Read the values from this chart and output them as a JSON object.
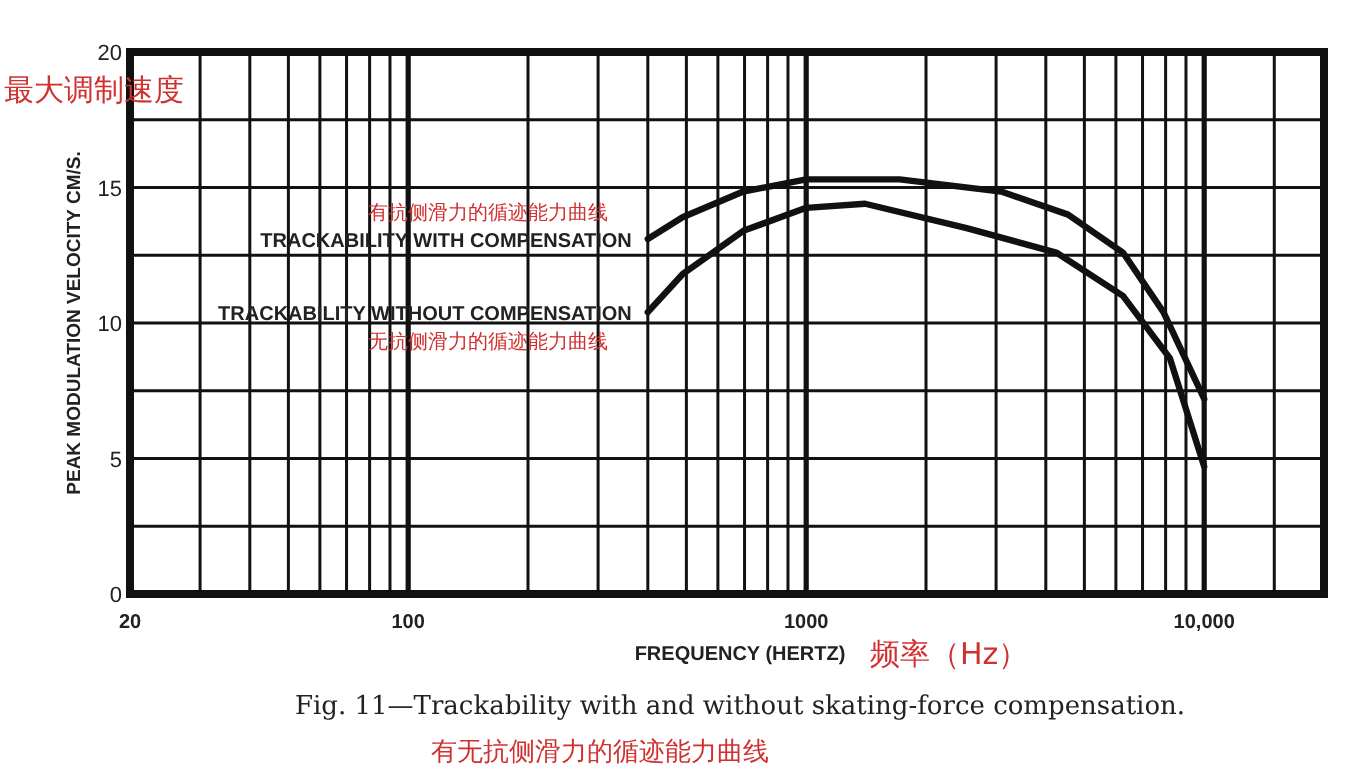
{
  "chart_data": {
    "type": "line",
    "title": "Fig. 11—Trackability with and without skating-force compensation.",
    "subtitle": "有无抗侧滑力的循迹能力曲线",
    "xlabel": "FREQUENCY (HERTZ)",
    "ylabel": "PEAK MODULATION VELOCITY CM/S.",
    "log": "x",
    "grid": true,
    "line_style": "solid",
    "xlim": [
      20,
      20000
    ],
    "ylim": [
      0,
      20
    ],
    "xticks": [
      20,
      {
        "value": 30,
        "label": null
      },
      {
        "value": 40,
        "label": null
      },
      {
        "value": 50,
        "label": null
      },
      {
        "value": 60,
        "label": null
      },
      {
        "value": 70,
        "label": null
      },
      {
        "value": 80,
        "label": null
      },
      {
        "value": 90,
        "label": null
      },
      100,
      {
        "value": 200,
        "label": null
      },
      {
        "value": 300,
        "label": null
      },
      {
        "value": 400,
        "label": null
      },
      {
        "value": 500,
        "label": null
      },
      {
        "value": 600,
        "label": null
      },
      {
        "value": 700,
        "label": null
      },
      {
        "value": 800,
        "label": null
      },
      {
        "value": 900,
        "label": null
      },
      1000,
      {
        "value": 2000,
        "label": null
      },
      {
        "value": 3000,
        "label": null
      },
      {
        "value": 4000,
        "label": null
      },
      {
        "value": 5000,
        "label": null
      },
      {
        "value": 6000,
        "label": null
      },
      {
        "value": 7000,
        "label": null
      },
      {
        "value": 8000,
        "label": null
      },
      {
        "value": 9000,
        "label": null
      },
      {
        "value": 10000,
        "label": "10,000"
      },
      {
        "value": 15000,
        "label": null
      }
    ],
    "yticks": [
      0,
      {
        "value": 2.5,
        "label": null
      },
      5,
      {
        "value": 7.5,
        "label": null
      },
      10,
      {
        "value": 12.5,
        "label": null
      },
      15,
      {
        "value": 17.5,
        "label": null
      },
      20
    ],
    "series": [
      {
        "name": "TRACKABILITY WITH COMPENSATION",
        "color": "#111111",
        "x": [
          400,
          489,
          695,
          1000,
          1717,
          3090,
          4550,
          6250,
          7900,
          10000
        ],
        "values": [
          13.1,
          13.9,
          14.85,
          15.3,
          15.3,
          14.85,
          14.0,
          12.6,
          10.4,
          7.2
        ]
      },
      {
        "name": "TRACKABILITY WITHOUT COMPENSATION",
        "color": "#111111",
        "x": [
          400,
          489,
          695,
          1000,
          1406,
          2530,
          4250,
          6250,
          8200,
          10000
        ],
        "values": [
          10.4,
          11.8,
          13.4,
          14.25,
          14.4,
          13.5,
          12.6,
          11.0,
          8.7,
          4.7
        ]
      }
    ],
    "annotations": [
      "有抗侧滑力的循迹能力曲线",
      "无抗侧滑力的循迹能力曲线",
      "最大调制速度",
      "频率（Hz）"
    ]
  }
}
